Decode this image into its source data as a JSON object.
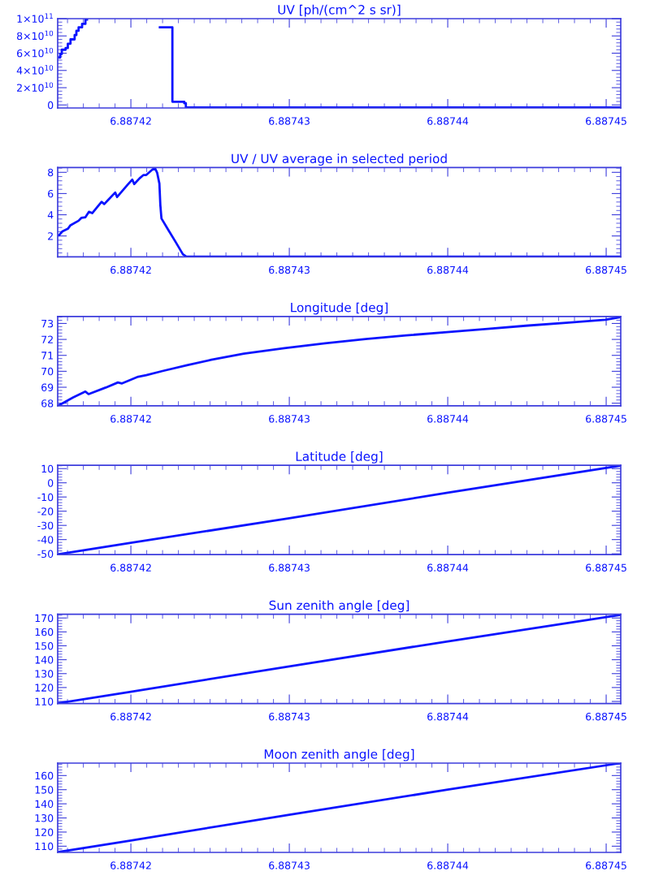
{
  "chart_data": [
    {
      "type": "step",
      "title": "UV [ph/(cm^2 s sr)]",
      "color": "#0a14ff",
      "x": [
        6.88741547,
        6.88741554,
        6.88741564,
        6.88741588,
        6.88741602,
        6.88741619,
        6.88741645,
        6.88741656,
        6.8874167,
        6.88741692,
        6.88741713,
        6.88741723,
        6.88742183,
        6.88742262,
        6.88742337,
        6.88742347,
        6.88745092
      ],
      "values": [
        55000000000.0,
        59000000000.0,
        64000000000.0,
        66000000000.0,
        71000000000.0,
        76000000000.0,
        81000000000.0,
        86000000000.0,
        90000000000.0,
        94000000000.0,
        99000000000.0,
        null,
        90000000000.0,
        3700000000.0,
        2000000000.0,
        -3000000000.0,
        -3000000000.0
      ],
      "xlim": [
        6.88741538,
        6.88745092
      ],
      "ylim": [
        -3500000000.0,
        100000000000.0
      ],
      "xticks": [
        6.88742,
        6.88743,
        6.88744,
        6.88745
      ],
      "yticks": [
        0,
        {
          "value": 20000000000.0,
          "label": "2×10$^{10}$"
        },
        {
          "value": 40000000000.0,
          "label": "4×10$^{10}$"
        },
        {
          "value": 60000000000.0,
          "label": "6×10$^{10}$"
        },
        {
          "value": 80000000000.0,
          "label": "8×10$^{10}$"
        },
        {
          "value": 100000000000.0,
          "label": "1×10$^{11}$"
        }
      ]
    },
    {
      "type": "line",
      "title": "UV / UV average in selected period",
      "color": "#0a14ff",
      "x": [
        6.88741547,
        6.88741568,
        6.88741602,
        6.88741619,
        6.8874167,
        6.88741687,
        6.88741713,
        6.88741735,
        6.88741756,
        6.88741815,
        6.88741832,
        6.88741858,
        6.88741901,
        6.88741913,
        6.88741978,
        6.88742009,
        6.88742021,
        6.88742055,
        6.8874208,
        6.88742097,
        6.88742135,
        6.88742152,
        6.88742166,
        6.8874218,
        6.88742186,
        6.88742193,
        6.88742234,
        6.88742285,
        6.88742328,
        6.8874235,
        6.88745092
      ],
      "values": [
        2.08,
        2.43,
        2.68,
        3.01,
        3.44,
        3.7,
        3.77,
        4.28,
        4.15,
        5.22,
        5.01,
        5.42,
        6.1,
        5.67,
        6.81,
        7.32,
        6.89,
        7.44,
        7.75,
        7.75,
        8.25,
        8.4,
        7.95,
        6.94,
        4.91,
        3.65,
        2.63,
        1.37,
        0.28,
        0.05,
        0.05
      ],
      "xlim": [
        6.88741538,
        6.88745092
      ],
      "ylim": [
        0.03,
        8.45
      ],
      "xticks": [
        6.88742,
        6.88743,
        6.88744,
        6.88745
      ],
      "yticks": [
        2,
        4,
        6,
        8
      ]
    },
    {
      "type": "line",
      "title": "Longitude [deg]",
      "color": "#0a14ff",
      "x": [
        6.88741546,
        6.88741636,
        6.88741713,
        6.88741733,
        6.88741841,
        6.88741918,
        6.88741944,
        6.88742046,
        6.88742097,
        6.887422,
        6.88742354,
        6.88742508,
        6.88742713,
        6.88742969,
        6.88743226,
        6.88743482,
        6.88743738,
        6.88743995,
        6.88744251,
        6.88744508,
        6.88744764,
        6.88744995,
        6.88745085
      ],
      "values": [
        67.87,
        68.36,
        68.73,
        68.57,
        68.98,
        69.3,
        69.24,
        69.66,
        69.76,
        70.02,
        70.38,
        70.72,
        71.11,
        71.45,
        71.76,
        72.02,
        72.25,
        72.46,
        72.66,
        72.87,
        73.05,
        73.23,
        73.39
      ],
      "xlim": [
        6.88741538,
        6.88745092
      ],
      "ylim": [
        67.84,
        73.44
      ],
      "xticks": [
        6.88742,
        6.88743,
        6.88744,
        6.88745
      ],
      "yticks": [
        68,
        69,
        70,
        71,
        72,
        73
      ]
    },
    {
      "type": "line",
      "title": "Latitude [deg]",
      "color": "#0a14ff",
      "x": [
        6.88741546,
        6.88742,
        6.88743,
        6.88744,
        6.88745085
      ],
      "values": [
        -50.3,
        -42.3,
        -25,
        -7,
        12
      ],
      "xlim": [
        6.88741538,
        6.88745092
      ],
      "ylim": [
        -50.6,
        12.3
      ],
      "xticks": [
        6.88742,
        6.88743,
        6.88744,
        6.88745
      ],
      "yticks": [
        -50,
        -40,
        -30,
        -20,
        -10,
        0,
        10
      ]
    },
    {
      "type": "line",
      "title": "Sun zenith angle [deg]",
      "color": "#0a14ff",
      "x": [
        6.88741546,
        6.88742,
        6.88743,
        6.88744,
        6.88745085
      ],
      "values": [
        108.8,
        117,
        135.2,
        153.2,
        172.1
      ],
      "xlim": [
        6.88741538,
        6.88745092
      ],
      "ylim": [
        108.5,
        172.7
      ],
      "xticks": [
        6.88742,
        6.88743,
        6.88744,
        6.88745
      ],
      "yticks": [
        110,
        120,
        130,
        140,
        150,
        160,
        170
      ]
    },
    {
      "type": "line",
      "title": "Moon zenith angle [deg]",
      "color": "#0a14ff",
      "x": [
        6.88741546,
        6.88742,
        6.88743,
        6.88744,
        6.88745085
      ],
      "values": [
        105.9,
        114,
        132.3,
        150,
        168.7
      ],
      "xlim": [
        6.88741538,
        6.88745092
      ],
      "ylim": [
        105.6,
        168.8
      ],
      "xticks": [
        6.88742,
        6.88743,
        6.88744,
        6.88745
      ],
      "yticks": [
        110,
        120,
        130,
        140,
        150,
        160
      ]
    }
  ]
}
